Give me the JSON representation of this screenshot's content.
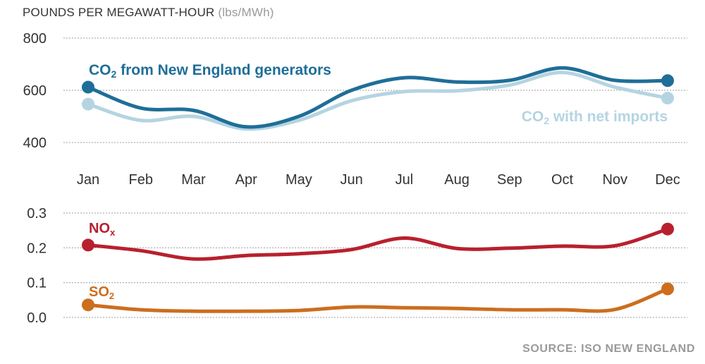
{
  "y_title": "POUNDS PER MEGAWATT-HOUR",
  "y_unit": "(lbs/MWh)",
  "source": "SOURCE: ISO NEW ENGLAND",
  "chart_data": [
    {
      "type": "line",
      "categories": [
        "Jan",
        "Feb",
        "Mar",
        "Apr",
        "May",
        "Jun",
        "Jul",
        "Aug",
        "Sep",
        "Oct",
        "Nov",
        "Dec"
      ],
      "ylim": [
        400,
        800
      ],
      "yticks": [
        "800",
        "600",
        "400"
      ],
      "ylabel": "POUNDS PER MEGAWATT-HOUR (lbs/MWh)",
      "grid": true,
      "series": [
        {
          "name": "CO2 from New England generators",
          "label_main": "CO",
          "label_sub": "2",
          "label_rest": " from New England generators",
          "color": "#1f6e98",
          "values": [
            612,
            532,
            523,
            460,
            500,
            600,
            648,
            632,
            638,
            686,
            638,
            637
          ]
        },
        {
          "name": "CO2 with net imports",
          "label_main": "CO",
          "label_sub": "2",
          "label_rest": " with net imports",
          "color": "#b5d4e2",
          "values": [
            547,
            485,
            500,
            452,
            485,
            560,
            595,
            598,
            620,
            668,
            612,
            570
          ]
        }
      ]
    },
    {
      "type": "line",
      "categories": [
        "Jan",
        "Feb",
        "Mar",
        "Apr",
        "May",
        "Jun",
        "Jul",
        "Aug",
        "Sep",
        "Oct",
        "Nov",
        "Dec"
      ],
      "ylim": [
        0,
        0.3
      ],
      "yticks": [
        "0.3",
        "0.2",
        "0.1",
        "0.0"
      ],
      "grid": true,
      "series": [
        {
          "name": "NOx",
          "label_main": "NO",
          "label_sub": "x",
          "label_rest": "",
          "color": "#b8202e",
          "values": [
            0.208,
            0.192,
            0.168,
            0.178,
            0.183,
            0.195,
            0.228,
            0.198,
            0.199,
            0.205,
            0.206,
            0.254
          ]
        },
        {
          "name": "SO2",
          "label_main": "SO",
          "label_sub": "2",
          "label_rest": "",
          "color": "#cc6e1e",
          "values": [
            0.036,
            0.022,
            0.018,
            0.018,
            0.02,
            0.03,
            0.028,
            0.026,
            0.022,
            0.022,
            0.023,
            0.082
          ]
        }
      ]
    }
  ]
}
